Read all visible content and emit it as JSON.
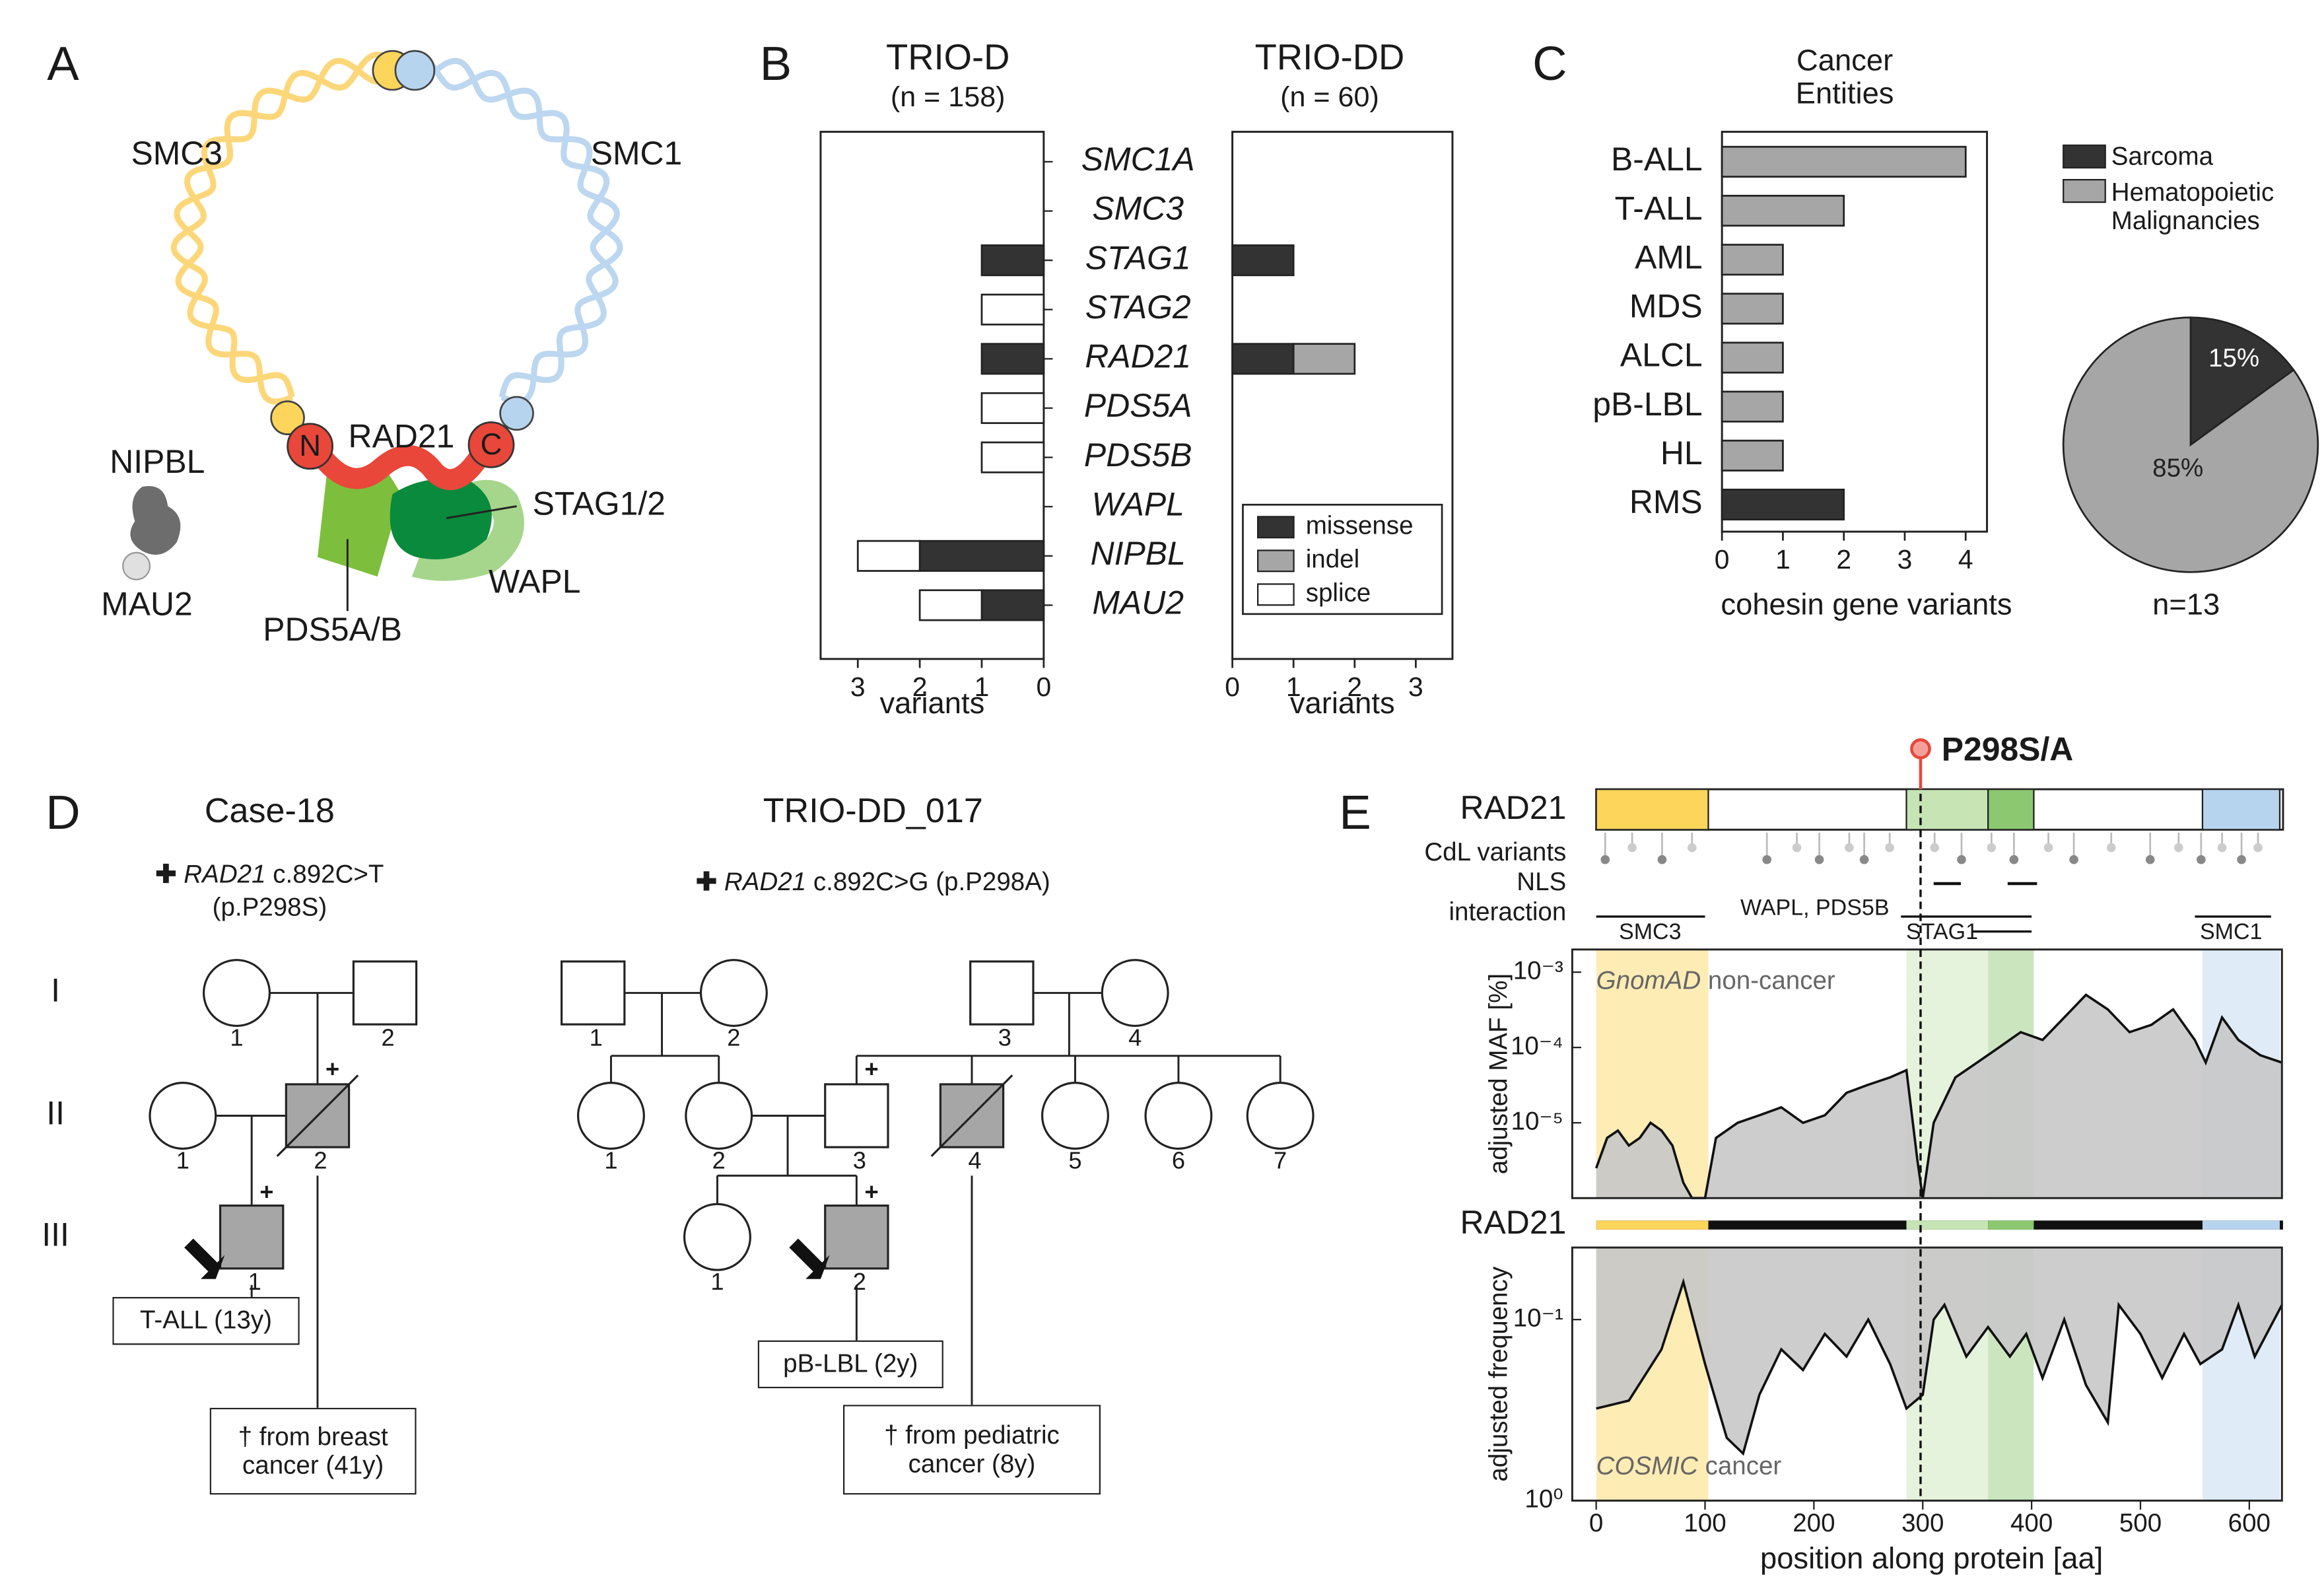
{
  "panel_labels": [
    "A",
    "B",
    "C",
    "D",
    "E"
  ],
  "panel_a": {
    "smc3": "SMC3",
    "smc1": "SMC1",
    "n": "N",
    "rad21": "RAD21",
    "c": "C",
    "nipbl": "NIPBL",
    "stag": "STAG1/2",
    "mau2": "MAU2",
    "wapl": "WAPL",
    "pds5": "PDS5A/B"
  },
  "chart_data": [
    {
      "type": "hbar_stacked",
      "title": "TRIO-D",
      "subtitle": "(n = 158)",
      "categories": [
        "SMC1A",
        "SMC3",
        "STAG1",
        "STAG2",
        "RAD21",
        "PDS5A",
        "PDS5B",
        "WAPL",
        "NIPBL",
        "MAU2"
      ],
      "series": [
        {
          "color": "#333333",
          "values": [
            0,
            0,
            1,
            0,
            1,
            0,
            0,
            0,
            2,
            1
          ]
        },
        {
          "color": "#a6a6a6",
          "values": [
            0,
            0,
            0,
            0,
            0,
            0,
            0,
            0,
            0,
            0
          ]
        },
        {
          "color": "#ffffff",
          "values": [
            0,
            0,
            0,
            1,
            0,
            1,
            1,
            0,
            1,
            1
          ]
        }
      ],
      "xlim": [
        0,
        3.6
      ],
      "xticks": [
        0,
        1,
        2,
        3
      ],
      "x_reversed": true,
      "xlabel": "variants"
    },
    {
      "type": "hbar_stacked",
      "title": "TRIO-DD",
      "subtitle": "(n = 60)",
      "series": [
        {
          "name": "missense",
          "color": "#333333",
          "values": [
            0,
            0,
            1,
            0,
            1,
            0,
            0,
            0,
            0,
            0
          ]
        },
        {
          "name": "indel",
          "color": "#a6a6a6",
          "values": [
            0,
            0,
            0,
            0,
            1,
            0,
            0,
            0,
            0,
            0
          ]
        },
        {
          "name": "splice",
          "color": "#ffffff",
          "values": [
            0,
            0,
            0,
            0,
            0,
            0,
            0,
            0,
            0,
            0
          ]
        }
      ],
      "xlim": [
        0,
        3.6
      ],
      "xticks": [
        0,
        1,
        2,
        3
      ],
      "xlabel": "variants",
      "legend": "lower right"
    },
    {
      "type": "hbar_stacked",
      "title": "Cancer Entities",
      "categories": [
        "B-ALL",
        "T-ALL",
        "AML",
        "MDS",
        "ALCL",
        "pB-LBL",
        "HL",
        "RMS"
      ],
      "series": [
        {
          "name": "Sarcoma",
          "color": "#333333",
          "values": [
            0,
            0,
            0,
            0,
            0,
            0,
            0,
            2
          ]
        },
        {
          "name": "Hematopoietic Malignancies",
          "color": "#a6a6a6",
          "values": [
            4,
            2,
            1,
            1,
            1,
            1,
            1,
            0
          ]
        }
      ],
      "xlim": [
        0,
        4.35
      ],
      "xticks": [
        0,
        1,
        2,
        3,
        4
      ],
      "xlabel": "cohesin gene variants",
      "legend": "outside right"
    },
    {
      "type": "pie",
      "values": [
        15,
        85
      ],
      "value_labels": [
        "15%",
        "85%"
      ],
      "colors": [
        "#333333",
        "#a6a6a6"
      ],
      "note": "n=13"
    },
    {
      "type": "area",
      "source": "GnomAD",
      "annotation": "non-cancer",
      "ylabel": "adjusted MAF [%]",
      "yscale": "log",
      "x": [
        0,
        10,
        20,
        30,
        40,
        50,
        60,
        70,
        80,
        88,
        100,
        110,
        130,
        150,
        170,
        190,
        210,
        230,
        250,
        270,
        285,
        295,
        300,
        310,
        330,
        350,
        370,
        390,
        410,
        430,
        450,
        470,
        490,
        510,
        530,
        550,
        560,
        575,
        590,
        610,
        630
      ],
      "values": [
        2.5e-06,
        6.3e-06,
        7.9e-06,
        5e-06,
        6.3e-06,
        1e-05,
        7.9e-06,
        5e-06,
        1.6e-06,
        1e-06,
        1e-06,
        6.3e-06,
        1e-05,
        1.26e-05,
        1.6e-05,
        1e-05,
        1.26e-05,
        2.5e-05,
        3.2e-05,
        4e-05,
        5e-05,
        3.2e-06,
        1e-06,
        1e-05,
        4e-05,
        6.3e-05,
        0.0001,
        0.00016,
        0.000126,
        0.00025,
        0.0005,
        0.00032,
        0.00016,
        0.0002,
        0.00032,
        0.000126,
        6.3e-05,
        0.00025,
        0.000126,
        7.9e-05,
        6.3e-05
      ],
      "color": "#c8c8c8",
      "xlim": [
        -22,
        630
      ],
      "ylim": [
        1e-06,
        0.002
      ],
      "yticks": [
        {
          "value": 0.001,
          "label": "10⁻³"
        },
        {
          "value": 0.0001,
          "label": "10⁻⁴"
        },
        {
          "value": 1e-05,
          "label": "10⁻⁵"
        }
      ]
    },
    {
      "type": "area",
      "source": "COSMIC",
      "annotation": "cancer",
      "ylabel": "adjusted frequency",
      "yscale": "log",
      "y_reversed": true,
      "x": [
        0,
        30,
        60,
        80,
        100,
        120,
        135,
        150,
        170,
        190,
        210,
        230,
        250,
        270,
        285,
        300,
        310,
        320,
        340,
        360,
        380,
        395,
        410,
        430,
        450,
        470,
        480,
        500,
        520,
        540,
        555,
        575,
        590,
        605,
        630
      ],
      "values": [
        0.31,
        0.28,
        0.146,
        0.062,
        0.176,
        0.45,
        0.55,
        0.26,
        0.146,
        0.19,
        0.12,
        0.16,
        0.1,
        0.176,
        0.31,
        0.26,
        0.1,
        0.083,
        0.16,
        0.11,
        0.16,
        0.12,
        0.21,
        0.1,
        0.23,
        0.37,
        0.083,
        0.12,
        0.21,
        0.12,
        0.176,
        0.146,
        0.083,
        0.16,
        0.083
      ],
      "color": "#c8c8c8",
      "xlim": [
        -22,
        630
      ],
      "ylim": [
        0.04,
        1
      ],
      "yticks": [
        {
          "value": 0.1,
          "label": "10⁻¹"
        },
        {
          "value": 1,
          "label": "10⁰"
        }
      ],
      "xticks": [
        0,
        100,
        200,
        300,
        400,
        500,
        600
      ],
      "xlabel": "position along protein [aa]"
    }
  ],
  "generations": [
    "I",
    "II",
    "III"
  ],
  "pedigrees": [
    {
      "title": "Case-18",
      "variant": {
        "gene": "RAD21",
        "change": "c.892C>T",
        "protein": "(p.P298S)"
      },
      "individuals": [
        "1",
        "2",
        "1",
        "2",
        "1"
      ],
      "boxes": [
        "T-ALL (13y)",
        "† from breast cancer (41y)"
      ]
    },
    {
      "title": "TRIO-DD_017",
      "variant": {
        "gene": "RAD21",
        "change": "c.892C>G",
        "protein": "(p.P298A)"
      },
      "individuals": [
        "1",
        "2",
        "3",
        "4",
        "1",
        "2",
        "3",
        "4",
        "5",
        "6",
        "7",
        "1",
        "2"
      ],
      "boxes": [
        "pB-LBL (2y)",
        "† from pediatric cancer (8y)"
      ]
    }
  ],
  "panel_e": {
    "protein": "RAD21",
    "protein_length": 631,
    "tracks": [
      "CdL variants",
      "NLS",
      "interaction"
    ],
    "interactions": [
      "SMC3",
      "WAPL, PDS5B",
      "STAG1",
      "SMC1"
    ],
    "mutation": "P298S/A",
    "mutation_position": 298,
    "regions": [
      {
        "start": 0,
        "end": 103,
        "color": "#fcd55a"
      },
      {
        "start": 285,
        "end": 360,
        "color": "#c6e4b4"
      },
      {
        "start": 360,
        "end": 402,
        "color": "#8cc870"
      },
      {
        "start": 557,
        "end": 628,
        "color": "#b7d4ee"
      }
    ]
  }
}
